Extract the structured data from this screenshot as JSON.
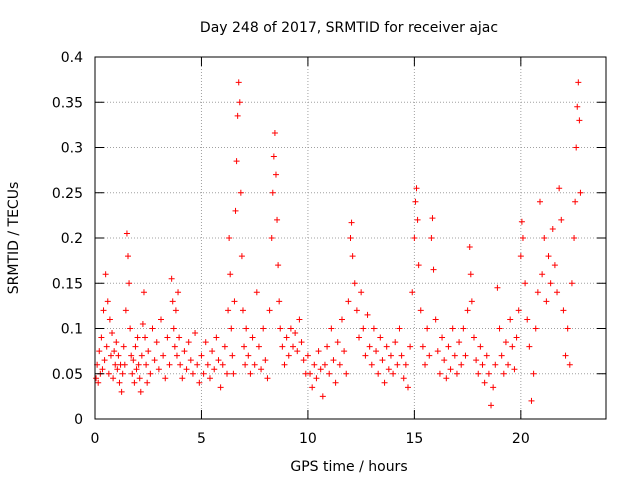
{
  "chart_data": {
    "type": "scatter",
    "title": "Day 248 of 2017, SRMTID for receiver ajac",
    "xlabel": "GPS time / hours",
    "ylabel": "SRMTID / TECUs",
    "xlim": [
      0,
      24
    ],
    "ylim": [
      0,
      0.4
    ],
    "x_ticks": [
      0,
      5,
      10,
      15,
      20
    ],
    "x_tick_labels": [
      "0",
      "5",
      "10",
      "15",
      "20"
    ],
    "y_ticks": [
      0,
      0.05,
      0.1,
      0.15,
      0.2,
      0.25,
      0.3,
      0.35,
      0.4
    ],
    "y_tick_labels": [
      "0",
      "0.05",
      "0.1",
      "0.15",
      "0.2",
      "0.25",
      "0.3",
      "0.35",
      "0.4"
    ],
    "grid": true,
    "marker": "+",
    "colors": {
      "points": "#ff0000",
      "grid": "#a0a0a0",
      "axis": "#000000"
    },
    "series": [
      {
        "name": "SRMTID",
        "points": [
          [
            0.05,
            0.045
          ],
          [
            0.1,
            0.06
          ],
          [
            0.15,
            0.04
          ],
          [
            0.2,
            0.075
          ],
          [
            0.25,
            0.05
          ],
          [
            0.3,
            0.09
          ],
          [
            0.35,
            0.055
          ],
          [
            0.4,
            0.12
          ],
          [
            0.45,
            0.065
          ],
          [
            0.5,
            0.16
          ],
          [
            0.55,
            0.08
          ],
          [
            0.6,
            0.13
          ],
          [
            0.65,
            0.05
          ],
          [
            0.7,
            0.11
          ],
          [
            0.75,
            0.07
          ],
          [
            0.8,
            0.095
          ],
          [
            0.85,
            0.045
          ],
          [
            0.9,
            0.075
          ],
          [
            0.95,
            0.06
          ],
          [
            1.0,
            0.085
          ],
          [
            1.05,
            0.055
          ],
          [
            1.1,
            0.07
          ],
          [
            1.15,
            0.04
          ],
          [
            1.2,
            0.06
          ],
          [
            1.25,
            0.03
          ],
          [
            1.3,
            0.05
          ],
          [
            1.35,
            0.08
          ],
          [
            1.4,
            0.06
          ],
          [
            1.45,
            0.12
          ],
          [
            1.5,
            0.205
          ],
          [
            1.55,
            0.18
          ],
          [
            1.6,
            0.15
          ],
          [
            1.65,
            0.1
          ],
          [
            1.7,
            0.07
          ],
          [
            1.75,
            0.05
          ],
          [
            1.8,
            0.065
          ],
          [
            1.85,
            0.04
          ],
          [
            1.9,
            0.08
          ],
          [
            1.95,
            0.055
          ],
          [
            2.0,
            0.09
          ],
          [
            2.05,
            0.06
          ],
          [
            2.1,
            0.045
          ],
          [
            2.15,
            0.03
          ],
          [
            2.2,
            0.07
          ],
          [
            2.25,
            0.105
          ],
          [
            2.3,
            0.14
          ],
          [
            2.35,
            0.09
          ],
          [
            2.4,
            0.06
          ],
          [
            2.45,
            0.04
          ],
          [
            2.5,
            0.075
          ],
          [
            2.6,
            0.05
          ],
          [
            2.7,
            0.1
          ],
          [
            2.8,
            0.065
          ],
          [
            2.9,
            0.085
          ],
          [
            3.0,
            0.055
          ],
          [
            3.1,
            0.11
          ],
          [
            3.2,
            0.07
          ],
          [
            3.3,
            0.045
          ],
          [
            3.4,
            0.09
          ],
          [
            3.5,
            0.06
          ],
          [
            3.6,
            0.155
          ],
          [
            3.65,
            0.13
          ],
          [
            3.7,
            0.1
          ],
          [
            3.75,
            0.08
          ],
          [
            3.8,
            0.12
          ],
          [
            3.85,
            0.07
          ],
          [
            3.9,
            0.14
          ],
          [
            3.95,
            0.09
          ],
          [
            4.0,
            0.06
          ],
          [
            4.1,
            0.045
          ],
          [
            4.2,
            0.075
          ],
          [
            4.3,
            0.055
          ],
          [
            4.4,
            0.085
          ],
          [
            4.5,
            0.065
          ],
          [
            4.6,
            0.05
          ],
          [
            4.7,
            0.095
          ],
          [
            4.8,
            0.06
          ],
          [
            4.9,
            0.04
          ],
          [
            5.0,
            0.07
          ],
          [
            5.1,
            0.05
          ],
          [
            5.2,
            0.085
          ],
          [
            5.3,
            0.06
          ],
          [
            5.4,
            0.045
          ],
          [
            5.5,
            0.075
          ],
          [
            5.6,
            0.055
          ],
          [
            5.7,
            0.09
          ],
          [
            5.8,
            0.065
          ],
          [
            5.9,
            0.035
          ],
          [
            6.0,
            0.06
          ],
          [
            6.1,
            0.08
          ],
          [
            6.2,
            0.05
          ],
          [
            6.25,
            0.12
          ],
          [
            6.3,
            0.2
          ],
          [
            6.35,
            0.16
          ],
          [
            6.4,
            0.1
          ],
          [
            6.45,
            0.07
          ],
          [
            6.5,
            0.05
          ],
          [
            6.55,
            0.13
          ],
          [
            6.6,
            0.23
          ],
          [
            6.65,
            0.285
          ],
          [
            6.7,
            0.335
          ],
          [
            6.75,
            0.372
          ],
          [
            6.8,
            0.35
          ],
          [
            6.85,
            0.25
          ],
          [
            6.9,
            0.18
          ],
          [
            6.95,
            0.12
          ],
          [
            7.0,
            0.08
          ],
          [
            7.05,
            0.06
          ],
          [
            7.1,
            0.1
          ],
          [
            7.2,
            0.07
          ],
          [
            7.3,
            0.05
          ],
          [
            7.4,
            0.09
          ],
          [
            7.5,
            0.06
          ],
          [
            7.6,
            0.14
          ],
          [
            7.7,
            0.08
          ],
          [
            7.8,
            0.055
          ],
          [
            7.9,
            0.1
          ],
          [
            8.0,
            0.065
          ],
          [
            8.1,
            0.045
          ],
          [
            8.2,
            0.12
          ],
          [
            8.3,
            0.2
          ],
          [
            8.35,
            0.25
          ],
          [
            8.4,
            0.29
          ],
          [
            8.45,
            0.316
          ],
          [
            8.5,
            0.27
          ],
          [
            8.55,
            0.22
          ],
          [
            8.6,
            0.17
          ],
          [
            8.65,
            0.13
          ],
          [
            8.7,
            0.1
          ],
          [
            8.8,
            0.08
          ],
          [
            8.9,
            0.06
          ],
          [
            9.0,
            0.09
          ],
          [
            9.1,
            0.07
          ],
          [
            9.2,
            0.1
          ],
          [
            9.3,
            0.08
          ],
          [
            9.4,
            0.095
          ],
          [
            9.5,
            0.075
          ],
          [
            9.6,
            0.11
          ],
          [
            9.7,
            0.085
          ],
          [
            9.8,
            0.065
          ],
          [
            9.9,
            0.05
          ],
          [
            10.0,
            0.07
          ],
          [
            10.1,
            0.05
          ],
          [
            10.2,
            0.035
          ],
          [
            10.3,
            0.06
          ],
          [
            10.4,
            0.045
          ],
          [
            10.5,
            0.075
          ],
          [
            10.6,
            0.055
          ],
          [
            10.7,
            0.025
          ],
          [
            10.8,
            0.06
          ],
          [
            10.9,
            0.08
          ],
          [
            11.0,
            0.05
          ],
          [
            11.1,
            0.1
          ],
          [
            11.2,
            0.065
          ],
          [
            11.3,
            0.04
          ],
          [
            11.4,
            0.085
          ],
          [
            11.5,
            0.06
          ],
          [
            11.6,
            0.11
          ],
          [
            11.7,
            0.075
          ],
          [
            11.8,
            0.05
          ],
          [
            11.9,
            0.13
          ],
          [
            12.0,
            0.2
          ],
          [
            12.05,
            0.217
          ],
          [
            12.1,
            0.18
          ],
          [
            12.2,
            0.15
          ],
          [
            12.3,
            0.12
          ],
          [
            12.4,
            0.09
          ],
          [
            12.5,
            0.14
          ],
          [
            12.6,
            0.1
          ],
          [
            12.7,
            0.07
          ],
          [
            12.8,
            0.115
          ],
          [
            12.9,
            0.08
          ],
          [
            13.0,
            0.06
          ],
          [
            13.1,
            0.1
          ],
          [
            13.2,
            0.075
          ],
          [
            13.3,
            0.05
          ],
          [
            13.4,
            0.09
          ],
          [
            13.5,
            0.065
          ],
          [
            13.6,
            0.04
          ],
          [
            13.7,
            0.08
          ],
          [
            13.8,
            0.055
          ],
          [
            13.9,
            0.07
          ],
          [
            14.0,
            0.05
          ],
          [
            14.1,
            0.085
          ],
          [
            14.2,
            0.06
          ],
          [
            14.3,
            0.1
          ],
          [
            14.4,
            0.07
          ],
          [
            14.5,
            0.045
          ],
          [
            14.6,
            0.06
          ],
          [
            14.7,
            0.035
          ],
          [
            14.8,
            0.08
          ],
          [
            14.9,
            0.14
          ],
          [
            15.0,
            0.2
          ],
          [
            15.05,
            0.24
          ],
          [
            15.1,
            0.255
          ],
          [
            15.15,
            0.22
          ],
          [
            15.2,
            0.17
          ],
          [
            15.3,
            0.12
          ],
          [
            15.4,
            0.08
          ],
          [
            15.5,
            0.06
          ],
          [
            15.6,
            0.1
          ],
          [
            15.7,
            0.07
          ],
          [
            15.8,
            0.2
          ],
          [
            15.85,
            0.222
          ],
          [
            15.9,
            0.165
          ],
          [
            16.0,
            0.11
          ],
          [
            16.1,
            0.075
          ],
          [
            16.2,
            0.05
          ],
          [
            16.3,
            0.09
          ],
          [
            16.4,
            0.065
          ],
          [
            16.5,
            0.045
          ],
          [
            16.6,
            0.08
          ],
          [
            16.7,
            0.055
          ],
          [
            16.8,
            0.1
          ],
          [
            16.9,
            0.07
          ],
          [
            17.0,
            0.05
          ],
          [
            17.1,
            0.085
          ],
          [
            17.2,
            0.06
          ],
          [
            17.3,
            0.1
          ],
          [
            17.4,
            0.07
          ],
          [
            17.5,
            0.12
          ],
          [
            17.6,
            0.19
          ],
          [
            17.65,
            0.16
          ],
          [
            17.7,
            0.13
          ],
          [
            17.8,
            0.09
          ],
          [
            17.9,
            0.065
          ],
          [
            18.0,
            0.05
          ],
          [
            18.1,
            0.08
          ],
          [
            18.2,
            0.06
          ],
          [
            18.3,
            0.04
          ],
          [
            18.4,
            0.07
          ],
          [
            18.5,
            0.05
          ],
          [
            18.6,
            0.015
          ],
          [
            18.7,
            0.035
          ],
          [
            18.8,
            0.06
          ],
          [
            18.9,
            0.145
          ],
          [
            19.0,
            0.1
          ],
          [
            19.1,
            0.07
          ],
          [
            19.2,
            0.05
          ],
          [
            19.3,
            0.085
          ],
          [
            19.4,
            0.06
          ],
          [
            19.5,
            0.11
          ],
          [
            19.6,
            0.08
          ],
          [
            19.7,
            0.055
          ],
          [
            19.8,
            0.09
          ],
          [
            19.9,
            0.12
          ],
          [
            20.0,
            0.18
          ],
          [
            20.05,
            0.218
          ],
          [
            20.1,
            0.2
          ],
          [
            20.2,
            0.15
          ],
          [
            20.3,
            0.11
          ],
          [
            20.4,
            0.08
          ],
          [
            20.5,
            0.02
          ],
          [
            20.6,
            0.05
          ],
          [
            20.7,
            0.1
          ],
          [
            20.8,
            0.14
          ],
          [
            20.9,
            0.24
          ],
          [
            21.0,
            0.16
          ],
          [
            21.1,
            0.2
          ],
          [
            21.2,
            0.13
          ],
          [
            21.3,
            0.18
          ],
          [
            21.4,
            0.15
          ],
          [
            21.5,
            0.21
          ],
          [
            21.6,
            0.17
          ],
          [
            21.7,
            0.14
          ],
          [
            21.8,
            0.255
          ],
          [
            21.9,
            0.22
          ],
          [
            22.0,
            0.12
          ],
          [
            22.1,
            0.07
          ],
          [
            22.2,
            0.1
          ],
          [
            22.3,
            0.06
          ],
          [
            22.4,
            0.15
          ],
          [
            22.5,
            0.2
          ],
          [
            22.55,
            0.24
          ],
          [
            22.6,
            0.3
          ],
          [
            22.65,
            0.345
          ],
          [
            22.7,
            0.372
          ],
          [
            22.75,
            0.33
          ],
          [
            22.8,
            0.25
          ]
        ]
      }
    ]
  }
}
